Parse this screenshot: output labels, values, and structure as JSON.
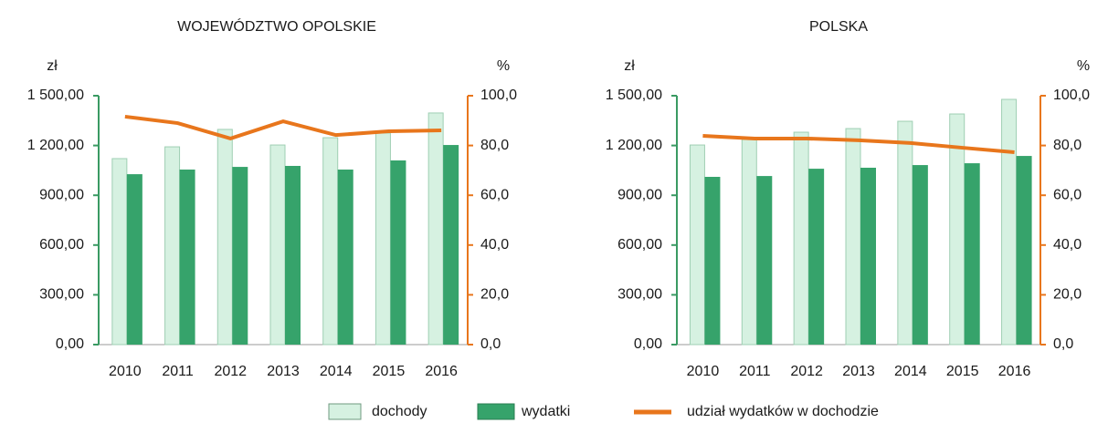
{
  "chart_data": [
    {
      "type": "bar_line",
      "title": "WOJEWÓDZTWO OPOLSKIE",
      "y_label": "zł",
      "y2_label": "%",
      "categories": [
        "2010",
        "2011",
        "2012",
        "2013",
        "2014",
        "2015",
        "2016"
      ],
      "series": [
        {
          "name": "dochody",
          "color": "#d6f1e1",
          "values": [
            1121,
            1192,
            1297,
            1203,
            1247,
            1275,
            1396
          ]
        },
        {
          "name": "wydatki",
          "color": "#36a36b",
          "values": [
            1027,
            1055,
            1071,
            1077,
            1055,
            1110,
            1203
          ]
        },
        {
          "name": "udział wydatków w dochodzie",
          "color": "#e8761c",
          "axis": "y2",
          "values": [
            91.6,
            89.0,
            82.8,
            89.7,
            84.2,
            85.7,
            86.1
          ]
        }
      ],
      "ylim": [
        0,
        1500
      ],
      "yticks": [
        {
          "value": 0,
          "label": "0,00"
        },
        {
          "value": 300,
          "label": "300,00"
        },
        {
          "value": 600,
          "label": "600,00"
        },
        {
          "value": 900,
          "label": "900,00"
        },
        {
          "value": 1200,
          "label": "1 200,00"
        },
        {
          "value": 1500,
          "label": "1 500,00"
        }
      ],
      "y2lim": [
        0,
        100
      ],
      "y2ticks": [
        {
          "value": 0,
          "label": "0,0"
        },
        {
          "value": 20,
          "label": "20,0"
        },
        {
          "value": 40,
          "label": "40,0"
        },
        {
          "value": 60,
          "label": "60,0"
        },
        {
          "value": 80,
          "label": "80,0"
        },
        {
          "value": 100,
          "label": "100,0"
        }
      ]
    },
    {
      "type": "bar_line",
      "title": "POLSKA",
      "y_label": "zł",
      "y2_label": "%",
      "categories": [
        "2010",
        "2011",
        "2012",
        "2013",
        "2014",
        "2015",
        "2016"
      ],
      "series": [
        {
          "color": "#d6f1e1",
          "values": [
            1203,
            1236,
            1280,
            1302,
            1346,
            1390,
            1478
          ]
        },
        {
          "color": "#36a36b",
          "values": [
            1011,
            1016,
            1060,
            1066,
            1082,
            1093,
            1137
          ]
        },
        {
          "color": "#e8761c",
          "axis": "y2",
          "values": [
            83.9,
            82.8,
            82.8,
            82.1,
            81.0,
            79.1,
            77.3
          ]
        }
      ],
      "ylim": [
        0,
        1500
      ],
      "yticks": [
        {
          "value": 0,
          "label": "0,00"
        },
        {
          "value": 300,
          "label": "300,00"
        },
        {
          "value": 600,
          "label": "600,00"
        },
        {
          "value": 900,
          "label": "900,00"
        },
        {
          "value": 1200,
          "label": "1 200,00"
        },
        {
          "value": 1500,
          "label": "1 500,00"
        }
      ],
      "y2lim": [
        0,
        100
      ],
      "y2ticks": [
        {
          "value": 0,
          "label": "0,0"
        },
        {
          "value": 20,
          "label": "20,0"
        },
        {
          "value": 40,
          "label": "40,0"
        },
        {
          "value": 60,
          "label": "60,0"
        },
        {
          "value": 80,
          "label": "80,0"
        },
        {
          "value": 100,
          "label": "100,0"
        }
      ]
    }
  ]
}
